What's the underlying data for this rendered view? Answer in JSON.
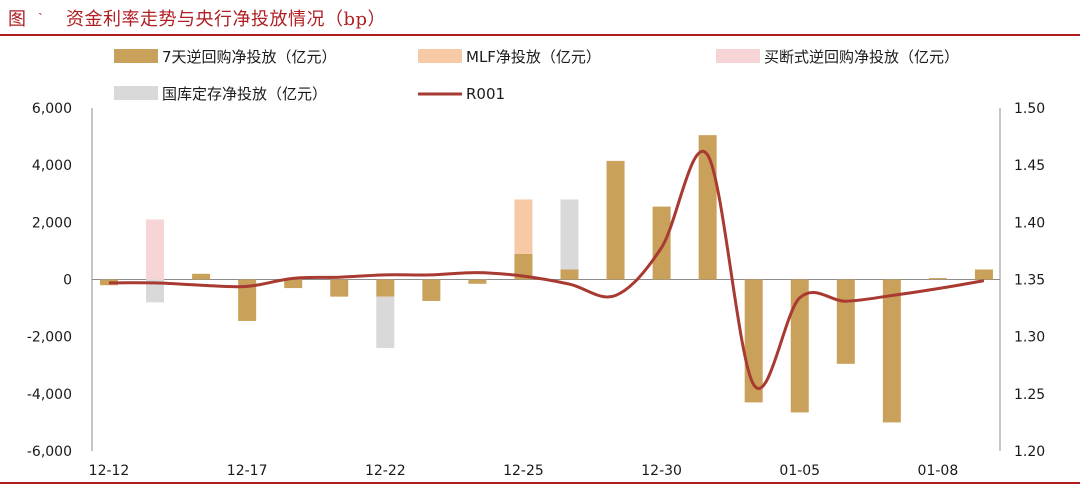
{
  "header": {
    "figure_label": "图",
    "figure_mark": "ˎ",
    "title": "资金利率走势与央行净投放情况（bp）"
  },
  "chart_data": {
    "type": "bar+line",
    "legend_placement": "top",
    "grid": false,
    "x_tick_labels": [
      "12-12",
      "12-17",
      "12-22",
      "12-25",
      "12-30",
      "01-05",
      "01-08"
    ],
    "left_axis": {
      "ylim": [
        -6000,
        6000
      ],
      "ticks": [
        "6,000",
        "4,000",
        "2,000",
        "0",
        "-2,000",
        "-4,000",
        "-6,000"
      ]
    },
    "right_axis": {
      "ylim": [
        1.2,
        1.5
      ],
      "ticks": [
        "1.50",
        "1.45",
        "1.40",
        "1.35",
        "1.30",
        "1.25",
        "1.20"
      ]
    },
    "legend": [
      {
        "key": "reverse_repo",
        "label": "7天逆回购净投放（亿元）",
        "color": "#c9a15a",
        "kind": "bar"
      },
      {
        "key": "mlf",
        "label": "MLF净投放（亿元）",
        "color": "#f7c9a5",
        "kind": "bar"
      },
      {
        "key": "outright",
        "label": "买断式逆回购净投放（亿元）",
        "color": "#f7d4d6",
        "kind": "bar"
      },
      {
        "key": "treasury",
        "label": "国库定存净投放（亿元）",
        "color": "#d9d9d9",
        "kind": "bar"
      },
      {
        "key": "r001",
        "label": "R001",
        "color": "#a83a32",
        "kind": "line"
      }
    ],
    "bars": [
      {
        "x": 0,
        "reverse_repo": -200
      },
      {
        "x": 1,
        "reverse_repo": 0,
        "outright": 2100,
        "treasury": -800
      },
      {
        "x": 2,
        "reverse_repo": 200
      },
      {
        "x": 3,
        "reverse_repo": -1450
      },
      {
        "x": 4,
        "reverse_repo": -300
      },
      {
        "x": 5,
        "reverse_repo": -600
      },
      {
        "x": 6,
        "reverse_repo": -600,
        "treasury": -1800
      },
      {
        "x": 7,
        "reverse_repo": -750
      },
      {
        "x": 8,
        "reverse_repo": -150
      },
      {
        "x": 9,
        "reverse_repo": 900,
        "mlf": 1900
      },
      {
        "x": 10,
        "reverse_repo": 350,
        "treasury": 2450
      },
      {
        "x": 11,
        "reverse_repo": 4150
      },
      {
        "x": 12,
        "reverse_repo": 2550
      },
      {
        "x": 13,
        "reverse_repo": 5050
      },
      {
        "x": 14,
        "reverse_repo": -4300
      },
      {
        "x": 15,
        "reverse_repo": -4650
      },
      {
        "x": 16,
        "reverse_repo": -2950
      },
      {
        "x": 17,
        "reverse_repo": -5000
      },
      {
        "x": 18,
        "reverse_repo": 50
      },
      {
        "x": 19,
        "reverse_repo": 350
      }
    ],
    "r001_line": [
      {
        "x": 0,
        "y": 1.347
      },
      {
        "x": 1,
        "y": 1.347
      },
      {
        "x": 2,
        "y": 1.345
      },
      {
        "x": 3,
        "y": 1.344
      },
      {
        "x": 4,
        "y": 1.351
      },
      {
        "x": 5,
        "y": 1.352
      },
      {
        "x": 6,
        "y": 1.354
      },
      {
        "x": 7,
        "y": 1.354
      },
      {
        "x": 8,
        "y": 1.356
      },
      {
        "x": 9,
        "y": 1.353
      },
      {
        "x": 10,
        "y": 1.346
      },
      {
        "x": 11,
        "y": 1.336
      },
      {
        "x": 12,
        "y": 1.378
      },
      {
        "x": 13,
        "y": 1.459
      },
      {
        "x": 14,
        "y": 1.258
      },
      {
        "x": 15,
        "y": 1.334
      },
      {
        "x": 16,
        "y": 1.331
      },
      {
        "x": 17,
        "y": 1.336
      },
      {
        "x": 18,
        "y": 1.342
      },
      {
        "x": 19,
        "y": 1.349
      }
    ]
  }
}
